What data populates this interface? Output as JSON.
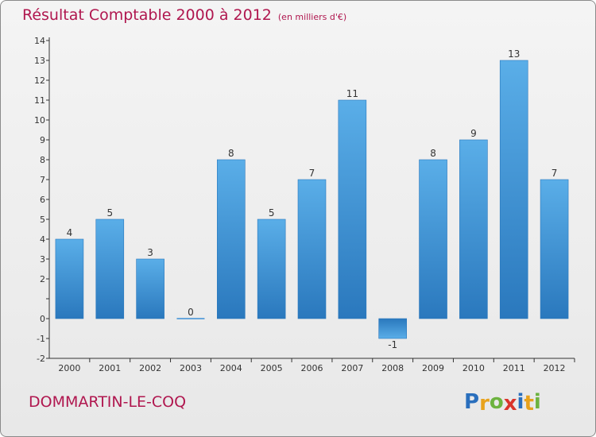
{
  "header": {
    "title": "Résultat Comptable 2000 à 2012",
    "subtitle": "(en milliers d'€)"
  },
  "commune": "DOMMARTIN-LE-COQ",
  "brand": {
    "letters": [
      "P",
      "r",
      "o",
      "x",
      "i",
      "t",
      "i"
    ],
    "colors": [
      "#2a6fbd",
      "#e8a21c",
      "#6db33f",
      "#d9342b",
      "#2a6fbd",
      "#e8a21c",
      "#6db33f"
    ]
  },
  "chart_data": {
    "type": "bar",
    "categories": [
      "2000",
      "2001",
      "2002",
      "2003",
      "2004",
      "2005",
      "2006",
      "2007",
      "2008",
      "2009",
      "2010",
      "2011",
      "2012"
    ],
    "values": [
      4,
      5,
      3,
      0,
      8,
      5,
      7,
      11,
      -1,
      8,
      9,
      13,
      7
    ],
    "data_labels": [
      "4",
      "5",
      "3",
      "0",
      "8",
      "5",
      "7",
      "11",
      "-1",
      "8",
      "9",
      "13",
      "7"
    ],
    "yticks": [
      -2,
      -1,
      0,
      1,
      2,
      3,
      4,
      5,
      6,
      7,
      8,
      9,
      10,
      11,
      12,
      13,
      14
    ],
    "ytick_labels": [
      "-2",
      "-1",
      "0",
      "",
      "2",
      "3",
      "4",
      "5",
      "6",
      "7",
      "8",
      "9",
      "10",
      "11",
      "12",
      "13",
      "14"
    ],
    "ylim": [
      -2,
      14
    ],
    "grid": false,
    "bar_color": "#3d8fd6"
  }
}
